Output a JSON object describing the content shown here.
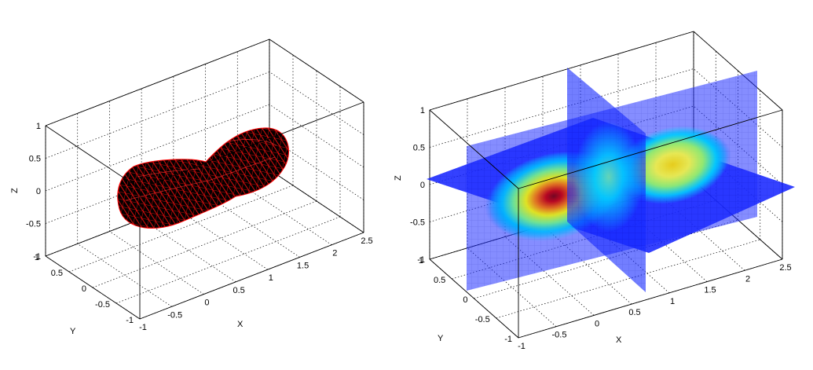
{
  "chart_data": [
    {
      "type": "3d-surface",
      "title": "",
      "xlabel": "X",
      "ylabel": "Y",
      "zlabel": "Z",
      "xlim": [
        -1,
        2.5
      ],
      "ylim": [
        -1,
        1
      ],
      "zlim": [
        -1,
        1
      ],
      "xticks": [
        "-1",
        "-0.5",
        "0",
        "0.5",
        "1",
        "1.5",
        "2",
        "2.5"
      ],
      "yticks": [
        "-1",
        "-0.5",
        "0",
        "0.5",
        "1"
      ],
      "zticks": [
        "-1",
        "-0.5",
        "0",
        "0.5",
        "1"
      ],
      "grid": true,
      "surface": {
        "description_color": "#000000",
        "edge_color": "#ff0000",
        "lobes": [
          {
            "center_x": 0,
            "radius": 0.85
          },
          {
            "center_x": 1.5,
            "radius": 0.75
          }
        ]
      }
    },
    {
      "type": "3d-slice",
      "title": "",
      "xlabel": "X",
      "ylabel": "Y",
      "zlabel": "Z",
      "xlim": [
        -1,
        2.5
      ],
      "ylim": [
        -1,
        1
      ],
      "zlim": [
        -1,
        1
      ],
      "xticks": [
        "-1",
        "-0.5",
        "0",
        "0.5",
        "1",
        "1.5",
        "2",
        "2.5"
      ],
      "yticks": [
        "-1",
        "-0.5",
        "0",
        "0.5",
        "1"
      ],
      "zticks": [
        "-1",
        "-0.5",
        "0",
        "0.5",
        "1"
      ],
      "grid": true,
      "slices": {
        "x": 0.75,
        "y": 0,
        "z": 0
      },
      "colormap": "jet",
      "colors": [
        "#0000ff",
        "#00ffff",
        "#ffff00",
        "#ff0000",
        "#800000"
      ],
      "field_peaks": [
        {
          "x": 0,
          "y": 0,
          "z": 0,
          "level": 1.0
        },
        {
          "x": 1.5,
          "y": 0,
          "z": 0,
          "level": 0.7
        }
      ]
    }
  ]
}
